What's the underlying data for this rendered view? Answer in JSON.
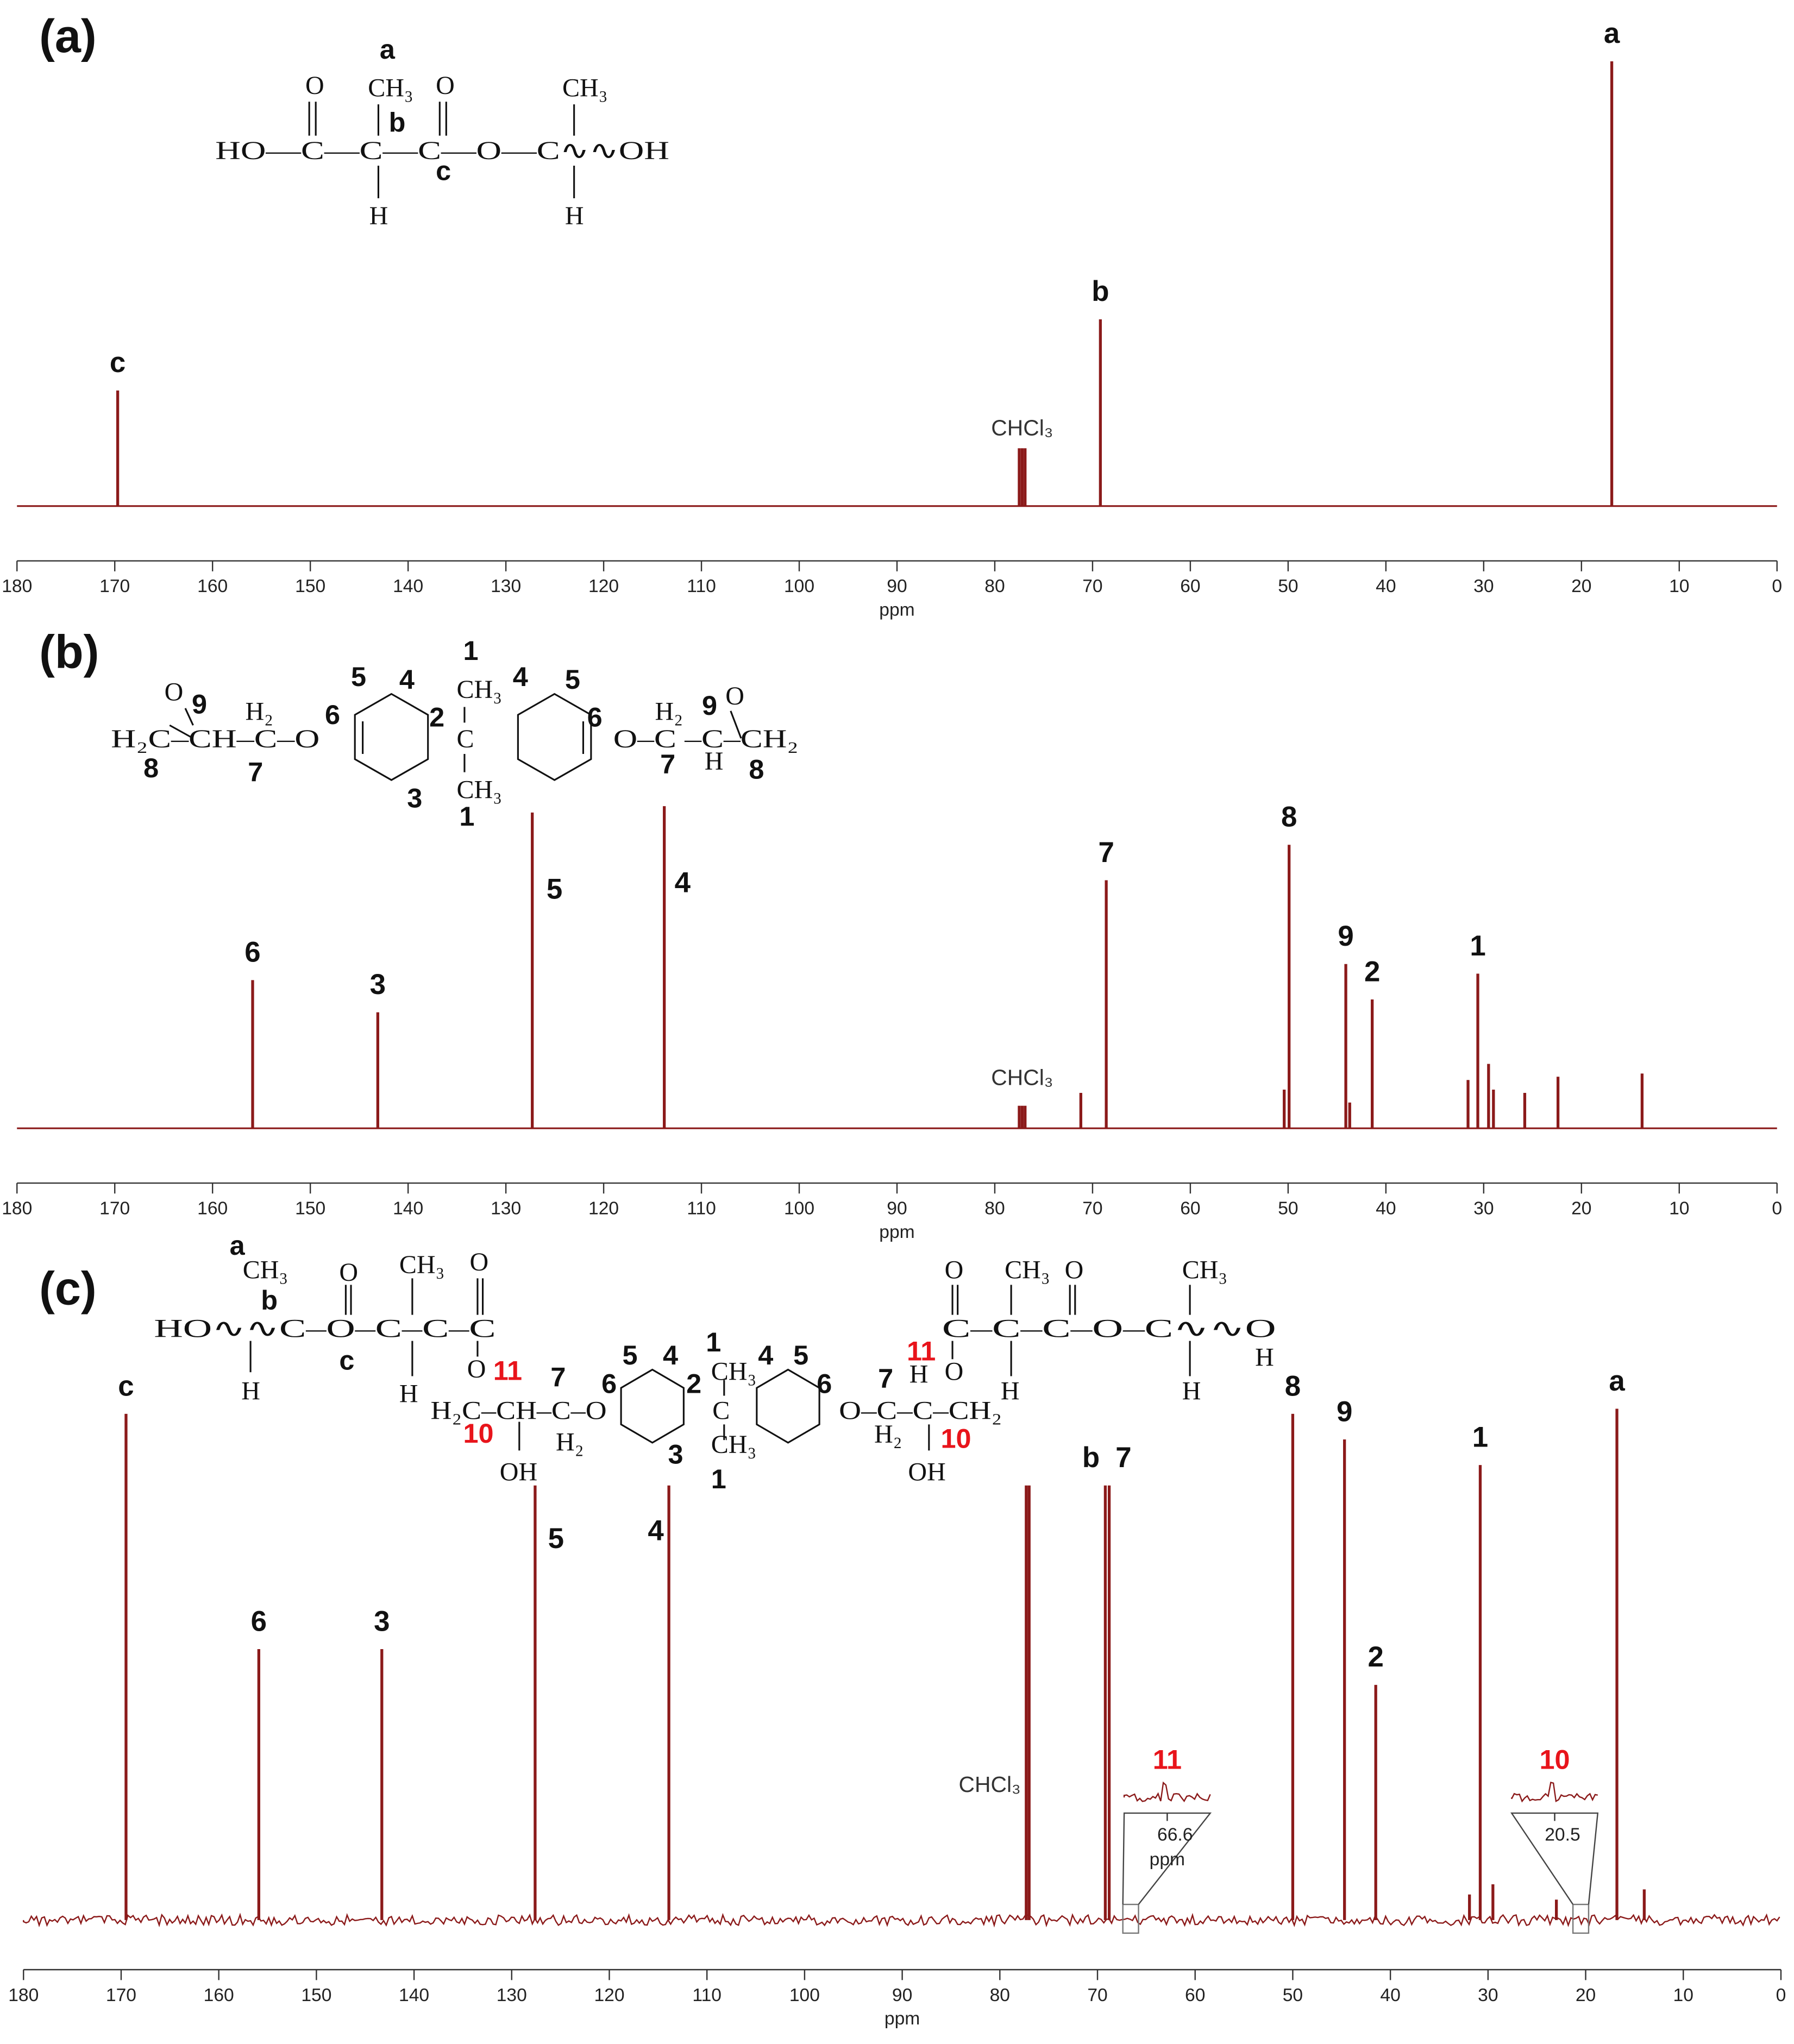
{
  "chart_data": [
    {
      "type": "spectrum",
      "panel_label": "(a)",
      "xlabel": "ppm",
      "xlim": [
        180,
        0
      ],
      "xticks": [
        180,
        170,
        160,
        150,
        140,
        130,
        120,
        110,
        100,
        90,
        80,
        70,
        60,
        50,
        40,
        30,
        20,
        10,
        0
      ],
      "ylim": [
        0,
        100
      ],
      "color": "#8b1a1a",
      "x": [
        169.7,
        77.5,
        77.2,
        76.9,
        69.2,
        16.9
      ],
      "values": [
        26,
        13,
        13,
        13,
        42,
        100
      ],
      "peak_labels": [
        "c",
        null,
        "CHCl₃",
        null,
        "b",
        "a"
      ],
      "structure": [
        "a",
        "O",
        "CH₃",
        "O",
        "CH₃",
        "HO—C—C—C—O—C∿∿OH",
        "b",
        "c",
        "H",
        "H"
      ]
    },
    {
      "type": "spectrum",
      "panel_label": "(b)",
      "xlabel": "ppm",
      "xlim": [
        180,
        0
      ],
      "xticks": [
        180,
        170,
        160,
        150,
        140,
        130,
        120,
        110,
        100,
        90,
        80,
        70,
        60,
        50,
        40,
        30,
        20,
        10,
        0
      ],
      "ylim": [
        0,
        100
      ],
      "color": "#8b1a1a",
      "x": [
        155.9,
        143.1,
        127.3,
        113.8,
        77.5,
        77.2,
        76.9,
        71.2,
        68.6,
        50.4,
        49.9,
        44.1,
        43.7,
        41.4,
        31.6,
        30.6,
        29.5,
        29.0,
        25.8,
        22.4,
        13.8
      ],
      "values": [
        46,
        36,
        98,
        100,
        7,
        7,
        7,
        11,
        77,
        12,
        88,
        51,
        8,
        40,
        15,
        48,
        20,
        12,
        11,
        16,
        17
      ],
      "peak_labels": [
        "6",
        "3",
        "5",
        "4",
        null,
        "CHCl₃",
        null,
        null,
        "7",
        null,
        "8",
        "9",
        null,
        "2",
        null,
        "1",
        null,
        null,
        null,
        null,
        null
      ],
      "structure": [
        "O",
        "9",
        "H₂",
        "5",
        "4",
        "1",
        "CH₃",
        "4",
        "5",
        "H₂",
        "9",
        "O",
        "6",
        "2",
        "6",
        "H₂C–CH–C–O",
        "C",
        "O–C –C–CH₂",
        "8",
        "7",
        "3",
        "CH₃",
        "1",
        "7",
        "H",
        "8"
      ]
    },
    {
      "type": "spectrum",
      "panel_label": "(c)",
      "xlabel": "ppm",
      "xlim": [
        180,
        0
      ],
      "xticks": [
        180,
        170,
        160,
        150,
        140,
        130,
        120,
        110,
        100,
        90,
        80,
        70,
        60,
        50,
        40,
        30,
        20,
        10,
        0
      ],
      "ylim": [
        0,
        100
      ],
      "color": "#8b1a1a",
      "x": [
        169.5,
        155.9,
        143.3,
        127.6,
        113.9,
        77.3,
        77.0,
        69.2,
        68.8,
        50.0,
        44.7,
        41.5,
        31.9,
        30.8,
        29.5,
        23.0,
        16.8,
        14.0
      ],
      "values": [
        99,
        53,
        53,
        85,
        85,
        85,
        85,
        85,
        85,
        99,
        94,
        46,
        5,
        89,
        7,
        4,
        100,
        6
      ],
      "peak_labels": [
        "c",
        "6",
        "3",
        "5",
        "4",
        "CHCl₃",
        null,
        "b",
        "7",
        "8",
        "9",
        "2",
        null,
        "1",
        null,
        null,
        "a",
        null
      ],
      "insets": [
        {
          "label": "11",
          "tick": 66.6,
          "xlabel": "ppm"
        },
        {
          "label": "10",
          "tick": 20.5
        }
      ],
      "structure": [
        "a",
        "CH₃",
        "b",
        "O",
        "CH₃",
        "O",
        "HO∿∿C–O–C–C–C",
        "c",
        "H",
        "H",
        "O",
        "11",
        "7",
        "H₂C–CH–C–O",
        "10",
        "H₂",
        "OH",
        "6",
        "5",
        "4",
        "1",
        "CH₃",
        "2",
        "4",
        "5",
        "6",
        "C",
        "CH₃",
        "3",
        "1",
        "O",
        "CH₃",
        "O",
        "CH₃",
        "C–C–C–O–C∿∿O",
        "11",
        "H",
        "O",
        "H",
        "H",
        "H",
        "O–C–C–CH₂",
        "7",
        "H₂",
        "10",
        "OH"
      ]
    }
  ]
}
